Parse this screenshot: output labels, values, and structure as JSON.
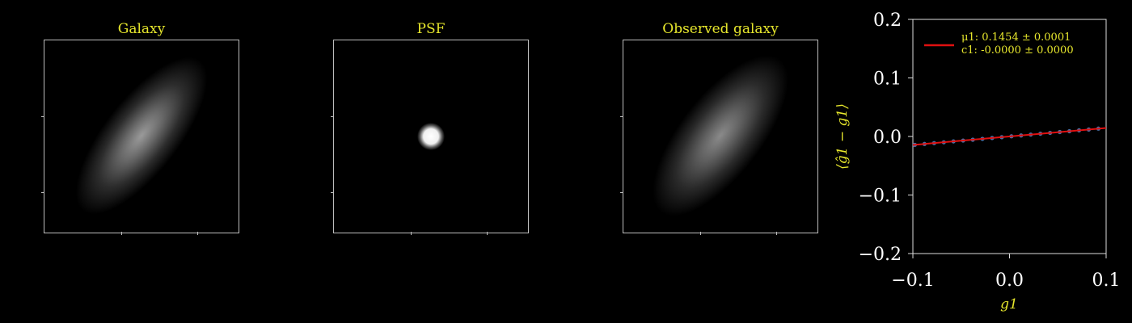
{
  "panels": [
    {
      "title": "Galaxy"
    },
    {
      "title": "PSF"
    },
    {
      "title": "Observed galaxy"
    }
  ],
  "chart_data": {
    "type": "line",
    "xlabel": "g1",
    "ylabel": "⟨ĝ1 − g1⟩",
    "xlim": [
      -0.1,
      0.1
    ],
    "ylim": [
      -0.2,
      0.2
    ],
    "xticks": [
      "−0.1",
      "0.0",
      "0.1"
    ],
    "xtick_values": [
      -0.1,
      0.0,
      0.1
    ],
    "yticks": [
      "−0.2",
      "−0.1",
      "0.0",
      "0.1",
      "0.2"
    ],
    "ytick_values": [
      -0.2,
      -0.1,
      0.0,
      0.1,
      0.2
    ],
    "grid": false,
    "legend": {
      "placement": "top-left",
      "entries": [
        {
          "name": "μ1: 0.1454 ± 0.0001",
          "color": "#e01010"
        },
        {
          "name": "c1: -0.0000 ± 0.0000",
          "color": "#e01010"
        }
      ]
    },
    "series": [
      {
        "type": "scatter",
        "color": "#4a6fa5",
        "x": [
          -0.098,
          -0.088,
          -0.078,
          -0.068,
          -0.058,
          -0.048,
          -0.038,
          -0.028,
          -0.018,
          -0.008,
          0.002,
          0.012,
          0.022,
          0.032,
          0.042,
          0.052,
          0.062,
          0.072,
          0.082,
          0.092
        ],
        "y": [
          -0.0143,
          -0.0128,
          -0.0113,
          -0.0099,
          -0.0084,
          -0.007,
          -0.0055,
          -0.0041,
          -0.0026,
          -0.0012,
          0.0003,
          0.0017,
          0.0032,
          0.0047,
          0.0061,
          0.0076,
          0.009,
          0.0105,
          0.0119,
          0.0134
        ]
      },
      {
        "type": "line",
        "color": "#e01010",
        "x": [
          -0.1,
          0.1
        ],
        "y": [
          -0.01454,
          0.01454
        ]
      }
    ]
  }
}
